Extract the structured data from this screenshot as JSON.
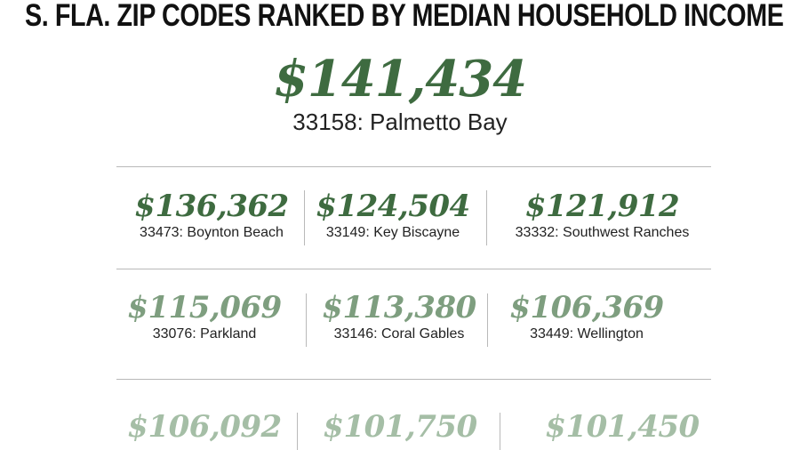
{
  "title": "S. FLA. ZIP CODES RANKED BY MEDIAN HOUSEHOLD INCOME",
  "top": {
    "value": "$141,434",
    "label": "33158: Palmetto Bay"
  },
  "rows": [
    [
      {
        "value": "$136,362",
        "label": "33473: Boynton Beach"
      },
      {
        "value": "$124,504",
        "label": "33149: Key Biscayne"
      },
      {
        "value": "$121,912",
        "label": "33332: Southwest Ranches"
      }
    ],
    [
      {
        "value": "$115,069",
        "label": "33076: Parkland"
      },
      {
        "value": "$113,380",
        "label": "33146: Coral Gables"
      },
      {
        "value": "$106,369",
        "label": "33449: Wellington"
      }
    ],
    [
      {
        "value": "$106,092",
        "label": ""
      },
      {
        "value": "$101,750",
        "label": ""
      },
      {
        "value": "$101,450",
        "label": ""
      }
    ]
  ],
  "colors": {
    "tier1": "#3e6b40",
    "tier2": "#7e9e7f",
    "tier3": "#a5bea6",
    "rule": "#b9b9b9"
  }
}
